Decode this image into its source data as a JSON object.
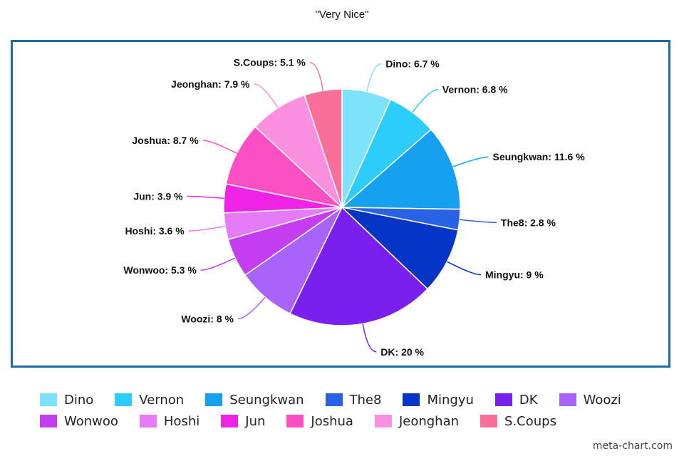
{
  "chart_data": {
    "type": "pie",
    "title": "\"Very Nice\"",
    "categories": [
      "Dino",
      "Vernon",
      "Seungkwan",
      "The8",
      "Mingyu",
      "DK",
      "Woozi",
      "Wonwoo",
      "Hoshi",
      "Jun",
      "Joshua",
      "Jeonghan",
      "S.Coups"
    ],
    "values": [
      6.7,
      6.8,
      11.6,
      2.8,
      9,
      20,
      8,
      5.3,
      3.6,
      3.9,
      8.7,
      7.9,
      5.1
    ],
    "labels": [
      "Dino: 6.7 %",
      "Vernon: 6.8 %",
      "Seungkwan: 11.6 %",
      "The8: 2.8 %",
      "Mingyu: 9 %",
      "DK: 20 %",
      "Woozi: 8 %",
      "Wonwoo: 5.3 %",
      "Hoshi: 3.6 %",
      "Jun: 3.9 %",
      "Joshua: 8.7 %",
      "Jeonghan: 7.9 %",
      "S.Coups: 5.1 %"
    ],
    "colors": [
      "#7de3fb",
      "#2ccdfb",
      "#15a1f0",
      "#2a62e6",
      "#0535c6",
      "#7a20ee",
      "#a963fb",
      "#c43df0",
      "#e67bf7",
      "#ee23e6",
      "#fb50c4",
      "#fb90e0",
      "#f87099"
    ],
    "legend_position": "bottom"
  },
  "watermark": "meta-chart.com"
}
